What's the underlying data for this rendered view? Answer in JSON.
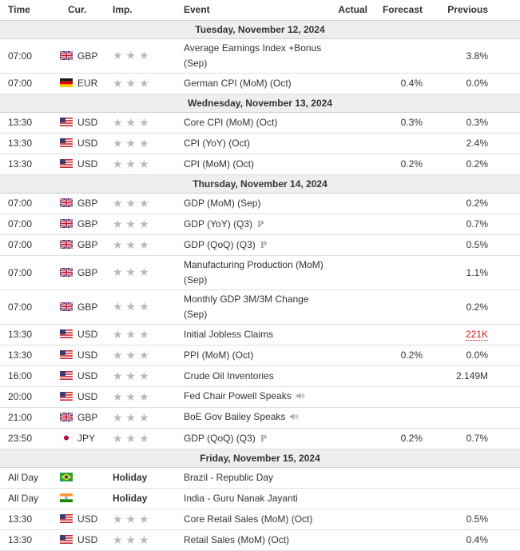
{
  "headers": {
    "time": "Time",
    "currency": "Cur.",
    "importance": "Imp.",
    "event": "Event",
    "actual": "Actual",
    "forecast": "Forecast",
    "previous": "Previous"
  },
  "colors": {
    "date_row_bg": "#eeeeee",
    "star": "#b9b9b9",
    "previous_revised": "#d01a1a"
  },
  "days": [
    {
      "date": "Tuesday, November 12, 2024",
      "events": [
        {
          "time": "07:00",
          "flag": "uk-flag-icon",
          "currency": "GBP",
          "importance": "★★★",
          "event": "Average Earnings Index +Bonus (Sep)",
          "actual": "",
          "forecast": "",
          "previous": "3.8%"
        },
        {
          "time": "07:00",
          "flag": "germany-flag-icon",
          "currency": "EUR",
          "importance": "★★★",
          "event": "German CPI (MoM) (Oct)",
          "actual": "",
          "forecast": "0.4%",
          "previous": "0.0%"
        }
      ]
    },
    {
      "date": "Wednesday, November 13, 2024",
      "events": [
        {
          "time": "13:30",
          "flag": "us-flag-icon",
          "currency": "USD",
          "importance": "★★★",
          "event": "Core CPI (MoM) (Oct)",
          "actual": "",
          "forecast": "0.3%",
          "previous": "0.3%"
        },
        {
          "time": "13:30",
          "flag": "us-flag-icon",
          "currency": "USD",
          "importance": "★★★",
          "event": "CPI (YoY) (Oct)",
          "actual": "",
          "forecast": "",
          "previous": "2.4%"
        },
        {
          "time": "13:30",
          "flag": "us-flag-icon",
          "currency": "USD",
          "importance": "★★★",
          "event": "CPI (MoM) (Oct)",
          "actual": "",
          "forecast": "0.2%",
          "previous": "0.2%"
        }
      ]
    },
    {
      "date": "Thursday, November 14, 2024",
      "events": [
        {
          "time": "07:00",
          "flag": "uk-flag-icon",
          "currency": "GBP",
          "importance": "★★★",
          "event": "GDP (MoM) (Sep)",
          "actual": "",
          "forecast": "",
          "previous": "0.2%"
        },
        {
          "time": "07:00",
          "flag": "uk-flag-icon",
          "currency": "GBP",
          "importance": "★★★",
          "event": "GDP (YoY) (Q3)",
          "marker": "P",
          "actual": "",
          "forecast": "",
          "previous": "0.7%"
        },
        {
          "time": "07:00",
          "flag": "uk-flag-icon",
          "currency": "GBP",
          "importance": "★★★",
          "event": "GDP (QoQ) (Q3)",
          "marker": "P",
          "actual": "",
          "forecast": "",
          "previous": "0.5%"
        },
        {
          "time": "07:00",
          "flag": "uk-flag-icon",
          "currency": "GBP",
          "importance": "★★★",
          "event": "Manufacturing Production (MoM) (Sep)",
          "actual": "",
          "forecast": "",
          "previous": "1.1%"
        },
        {
          "time": "07:00",
          "flag": "uk-flag-icon",
          "currency": "GBP",
          "importance": "★★★",
          "event": "Monthly GDP 3M/3M Change (Sep)",
          "actual": "",
          "forecast": "",
          "previous": "0.2%"
        },
        {
          "time": "13:30",
          "flag": "us-flag-icon",
          "currency": "USD",
          "importance": "★★★",
          "event": "Initial Jobless Claims",
          "actual": "",
          "forecast": "",
          "previous": "221K",
          "previous_revised": true
        },
        {
          "time": "13:30",
          "flag": "us-flag-icon",
          "currency": "USD",
          "importance": "★★★",
          "event": "PPI (MoM) (Oct)",
          "actual": "",
          "forecast": "0.2%",
          "previous": "0.0%"
        },
        {
          "time": "16:00",
          "flag": "us-flag-icon",
          "currency": "USD",
          "importance": "★★★",
          "event": "Crude Oil Inventories",
          "actual": "",
          "forecast": "",
          "previous": "2.149M"
        },
        {
          "time": "20:00",
          "flag": "us-flag-icon",
          "currency": "USD",
          "importance": "★★★",
          "event": "Fed Chair Powell Speaks",
          "speech": true,
          "actual": "",
          "forecast": "",
          "previous": ""
        },
        {
          "time": "21:00",
          "flag": "uk-flag-icon",
          "currency": "GBP",
          "importance": "★★★",
          "event": "BoE Gov Bailey Speaks",
          "speech": true,
          "actual": "",
          "forecast": "",
          "previous": ""
        },
        {
          "time": "23:50",
          "flag": "japan-flag-icon",
          "currency": "JPY",
          "importance": "★★★",
          "event": "GDP (QoQ) (Q3)",
          "marker": "P",
          "actual": "",
          "forecast": "0.2%",
          "previous": "0.7%"
        }
      ]
    },
    {
      "date": "Friday, November 15, 2024",
      "events": [
        {
          "time": "All Day",
          "flag": "brazil-flag-icon",
          "currency": "",
          "importance": "Holiday",
          "event": "Brazil - Republic Day",
          "actual": "",
          "forecast": "",
          "previous": ""
        },
        {
          "time": "All Day",
          "flag": "india-flag-icon",
          "currency": "",
          "importance": "Holiday",
          "event": "India - Guru Nanak Jayanti",
          "actual": "",
          "forecast": "",
          "previous": ""
        },
        {
          "time": "13:30",
          "flag": "us-flag-icon",
          "currency": "USD",
          "importance": "★★★",
          "event": "Core Retail Sales (MoM) (Oct)",
          "actual": "",
          "forecast": "",
          "previous": "0.5%"
        },
        {
          "time": "13:30",
          "flag": "us-flag-icon",
          "currency": "USD",
          "importance": "★★★",
          "event": "Retail Sales (MoM) (Oct)",
          "actual": "",
          "forecast": "",
          "previous": "0.4%"
        }
      ]
    }
  ]
}
